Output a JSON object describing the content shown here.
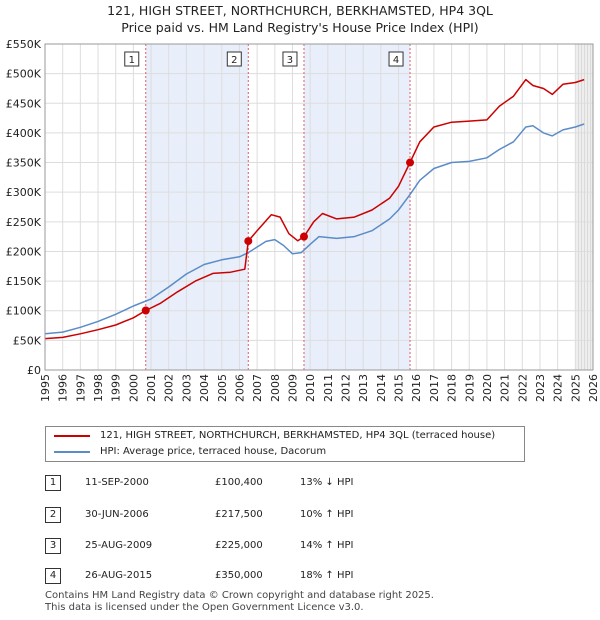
{
  "title_line1": "121, HIGH STREET, NORTHCHURCH, BERKHAMSTED, HP4 3QL",
  "title_line2": "Price paid vs. HM Land Registry's House Price Index (HPI)",
  "legend": {
    "property_label": "121, HIGH STREET, NORTHCHURCH, BERKHAMSTED, HP4 3QL (terraced house)",
    "hpi_label": "HPI: Average price, terraced house, Dacorum"
  },
  "colors": {
    "property": "#cc0000",
    "hpi": "#5b8cc8",
    "band": "#e8eefa",
    "marker_line": "#e06060"
  },
  "transactions": [
    {
      "num": "1",
      "date": "11-SEP-2000",
      "price": "£100,400",
      "hpi": "13% ↓ HPI"
    },
    {
      "num": "2",
      "date": "30-JUN-2006",
      "price": "£217,500",
      "hpi": "10% ↑ HPI"
    },
    {
      "num": "3",
      "date": "25-AUG-2009",
      "price": "£225,000",
      "hpi": "14% ↑ HPI"
    },
    {
      "num": "4",
      "date": "26-AUG-2015",
      "price": "£350,000",
      "hpi": "18% ↑ HPI"
    }
  ],
  "footer_line1": "Contains HM Land Registry data © Crown copyright and database right 2025.",
  "footer_line2": "This data is licensed under the Open Government Licence v3.0.",
  "chart_data": {
    "type": "line",
    "title": "121, HIGH STREET, NORTHCHURCH, BERKHAMSTED, HP4 3QL",
    "subtitle": "Price paid vs. HM Land Registry's House Price Index (HPI)",
    "xlim": [
      1995,
      2026
    ],
    "ylim": [
      0,
      550000
    ],
    "x_ticks": [
      "1995",
      "1996",
      "1997",
      "1998",
      "1999",
      "2000",
      "2001",
      "2002",
      "2003",
      "2004",
      "2005",
      "2006",
      "2007",
      "2008",
      "2009",
      "2010",
      "2011",
      "2012",
      "2013",
      "2014",
      "2015",
      "2016",
      "2017",
      "2018",
      "2019",
      "2020",
      "2021",
      "2022",
      "2023",
      "2024",
      "2025",
      "2026"
    ],
    "y_ticks": [
      {
        "value": 0,
        "label": "£0"
      },
      {
        "value": 50000,
        "label": "£50K"
      },
      {
        "value": 100000,
        "label": "£100K"
      },
      {
        "value": 150000,
        "label": "£150K"
      },
      {
        "value": 200000,
        "label": "£200K"
      },
      {
        "value": 250000,
        "label": "£250K"
      },
      {
        "value": 300000,
        "label": "£300K"
      },
      {
        "value": 350000,
        "label": "£350K"
      },
      {
        "value": 400000,
        "label": "£400K"
      },
      {
        "value": 450000,
        "label": "£450K"
      },
      {
        "value": 500000,
        "label": "£500K"
      },
      {
        "value": 550000,
        "label": "£550K"
      }
    ],
    "shaded_ranges": [
      [
        2000.7,
        2006.5
      ],
      [
        2009.65,
        2015.65
      ]
    ],
    "future_from": 2025.0,
    "series": [
      {
        "name": "121, HIGH STREET, NORTHCHURCH, BERKHAMSTED, HP4 3QL (terraced house)",
        "points": [
          [
            1995.0,
            53000
          ],
          [
            1996.0,
            55000
          ],
          [
            1997.0,
            61000
          ],
          [
            1998.0,
            68000
          ],
          [
            1999.0,
            76000
          ],
          [
            2000.0,
            88000
          ],
          [
            2000.7,
            100400
          ],
          [
            2001.5,
            112000
          ],
          [
            2002.5,
            132000
          ],
          [
            2003.5,
            150000
          ],
          [
            2004.5,
            163000
          ],
          [
            2005.5,
            165000
          ],
          [
            2006.3,
            170000
          ],
          [
            2006.5,
            217500
          ],
          [
            2007.0,
            235000
          ],
          [
            2007.8,
            262000
          ],
          [
            2008.3,
            258000
          ],
          [
            2008.8,
            230000
          ],
          [
            2009.3,
            218000
          ],
          [
            2009.65,
            225000
          ],
          [
            2010.2,
            250000
          ],
          [
            2010.7,
            264000
          ],
          [
            2011.5,
            255000
          ],
          [
            2012.5,
            258000
          ],
          [
            2013.5,
            270000
          ],
          [
            2014.5,
            290000
          ],
          [
            2015.0,
            310000
          ],
          [
            2015.65,
            350000
          ],
          [
            2016.2,
            385000
          ],
          [
            2017.0,
            410000
          ],
          [
            2018.0,
            418000
          ],
          [
            2019.0,
            420000
          ],
          [
            2020.0,
            422000
          ],
          [
            2020.7,
            445000
          ],
          [
            2021.5,
            462000
          ],
          [
            2022.2,
            490000
          ],
          [
            2022.6,
            480000
          ],
          [
            2023.2,
            475000
          ],
          [
            2023.7,
            465000
          ],
          [
            2024.3,
            482000
          ],
          [
            2025.0,
            485000
          ],
          [
            2025.5,
            490000
          ]
        ]
      },
      {
        "name": "HPI: Average price, terraced house, Dacorum",
        "points": [
          [
            1995.0,
            61000
          ],
          [
            1996.0,
            64000
          ],
          [
            1997.0,
            72000
          ],
          [
            1998.0,
            82000
          ],
          [
            1999.0,
            94000
          ],
          [
            2000.0,
            108000
          ],
          [
            2001.0,
            120000
          ],
          [
            2002.0,
            140000
          ],
          [
            2003.0,
            162000
          ],
          [
            2004.0,
            178000
          ],
          [
            2005.0,
            186000
          ],
          [
            2006.0,
            191000
          ],
          [
            2006.5,
            198000
          ],
          [
            2007.5,
            217000
          ],
          [
            2008.0,
            220000
          ],
          [
            2008.5,
            210000
          ],
          [
            2009.0,
            196000
          ],
          [
            2009.5,
            198000
          ],
          [
            2010.0,
            212000
          ],
          [
            2010.5,
            225000
          ],
          [
            2011.5,
            222000
          ],
          [
            2012.5,
            225000
          ],
          [
            2013.5,
            235000
          ],
          [
            2014.5,
            255000
          ],
          [
            2015.0,
            270000
          ],
          [
            2015.65,
            296000
          ],
          [
            2016.2,
            320000
          ],
          [
            2017.0,
            340000
          ],
          [
            2018.0,
            350000
          ],
          [
            2019.0,
            352000
          ],
          [
            2020.0,
            358000
          ],
          [
            2020.7,
            372000
          ],
          [
            2021.5,
            385000
          ],
          [
            2022.2,
            410000
          ],
          [
            2022.6,
            412000
          ],
          [
            2023.2,
            400000
          ],
          [
            2023.7,
            395000
          ],
          [
            2024.3,
            405000
          ],
          [
            2025.0,
            410000
          ],
          [
            2025.5,
            415000
          ]
        ]
      }
    ],
    "markers": [
      {
        "label": "1",
        "x": 2000.7,
        "y": 100400
      },
      {
        "label": "2",
        "x": 2006.5,
        "y": 217500
      },
      {
        "label": "3",
        "x": 2009.65,
        "y": 225000
      },
      {
        "label": "4",
        "x": 2015.65,
        "y": 350000
      }
    ]
  }
}
